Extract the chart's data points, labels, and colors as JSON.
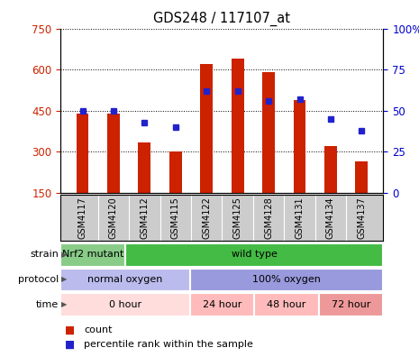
{
  "title": "GDS248 / 117107_at",
  "samples": [
    "GSM4117",
    "GSM4120",
    "GSM4112",
    "GSM4115",
    "GSM4122",
    "GSM4125",
    "GSM4128",
    "GSM4131",
    "GSM4134",
    "GSM4137"
  ],
  "counts": [
    440,
    440,
    335,
    300,
    620,
    640,
    590,
    490,
    320,
    265
  ],
  "percentiles": [
    50,
    50,
    43,
    40,
    62,
    62,
    56,
    57,
    45,
    38
  ],
  "ylim_left": [
    150,
    750
  ],
  "ylim_right": [
    0,
    100
  ],
  "yticks_left": [
    150,
    300,
    450,
    600,
    750
  ],
  "yticks_right": [
    0,
    25,
    50,
    75,
    100
  ],
  "bar_color": "#cc2200",
  "dot_color": "#2222cc",
  "bar_width": 0.4,
  "strain_labels": [
    {
      "label": "Nrf2 mutant",
      "start": 0,
      "end": 2,
      "color": "#88cc88"
    },
    {
      "label": "wild type",
      "start": 2,
      "end": 10,
      "color": "#44bb44"
    }
  ],
  "protocol_labels": [
    {
      "label": "normal oxygen",
      "start": 0,
      "end": 4,
      "color": "#bbbbee"
    },
    {
      "label": "100% oxygen",
      "start": 4,
      "end": 10,
      "color": "#9999dd"
    }
  ],
  "time_labels": [
    {
      "label": "0 hour",
      "start": 0,
      "end": 4,
      "color": "#ffdddd"
    },
    {
      "label": "24 hour",
      "start": 4,
      "end": 6,
      "color": "#ffbbbb"
    },
    {
      "label": "48 hour",
      "start": 6,
      "end": 8,
      "color": "#ffbbbb"
    },
    {
      "label": "72 hour",
      "start": 8,
      "end": 10,
      "color": "#ee9999"
    }
  ],
  "legend_count_color": "#cc2200",
  "legend_dot_color": "#2222cc",
  "tick_label_color_left": "#cc2200",
  "tick_label_color_right": "#0000cc"
}
